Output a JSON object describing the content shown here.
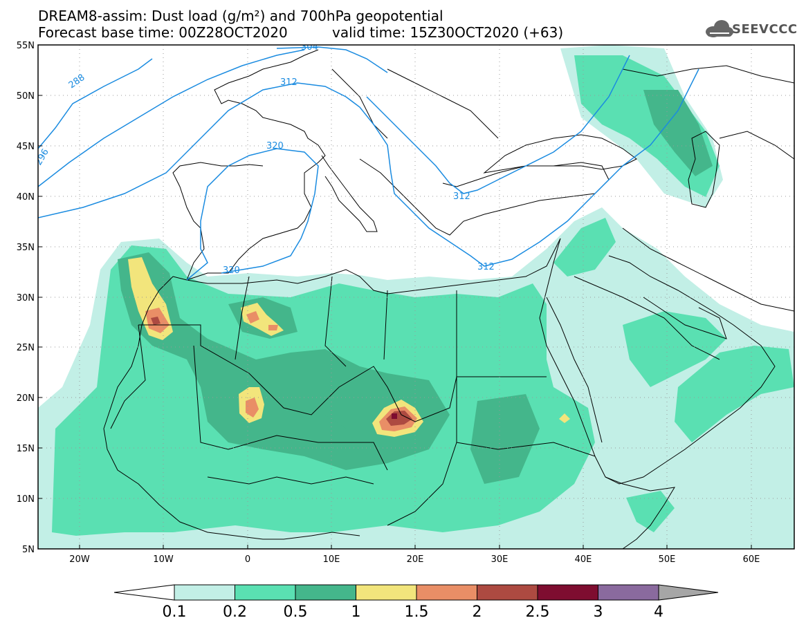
{
  "header": {
    "line1": "DREAM8-assim: Dust load (g/m²) and 700hPa geopotential",
    "line2_base": "Forecast base time: 00Z28OCT2020",
    "line2_valid": "valid time: 15Z30OCT2020 (+63)"
  },
  "logo": {
    "text": "SEEVCCC",
    "icon": "cloud-icon"
  },
  "map": {
    "lat_labels": [
      "55N",
      "50N",
      "45N",
      "40N",
      "35N",
      "30N",
      "25N",
      "20N",
      "15N",
      "10N",
      "5N"
    ],
    "lon_labels": [
      "20W",
      "10W",
      "0",
      "10E",
      "20E",
      "30E",
      "40E",
      "50E",
      "60E"
    ],
    "contour_labels": [
      "288",
      "296",
      "304",
      "312",
      "320",
      "312",
      "320",
      "312"
    ],
    "grid": "dotted",
    "projection": "lat-lon",
    "extent": {
      "lon": [
        -25,
        65
      ],
      "lat": [
        5,
        55
      ]
    }
  },
  "colorbar": {
    "labels": [
      "0.1",
      "0.2",
      "0.5",
      "1",
      "1.5",
      "2",
      "2.5",
      "3",
      "4"
    ],
    "colors": [
      "#c2efe6",
      "#5ae0b2",
      "#44b68b",
      "#f2e57c",
      "#e98e66",
      "#ad4a41",
      "#7e0d30",
      "#8a6a9e",
      "#a6a6a6"
    ],
    "under_color": "#ffffff",
    "over_color": "#a6a6a6"
  },
  "colors": {
    "contour": "#1a8be0",
    "coast": "#000000"
  }
}
